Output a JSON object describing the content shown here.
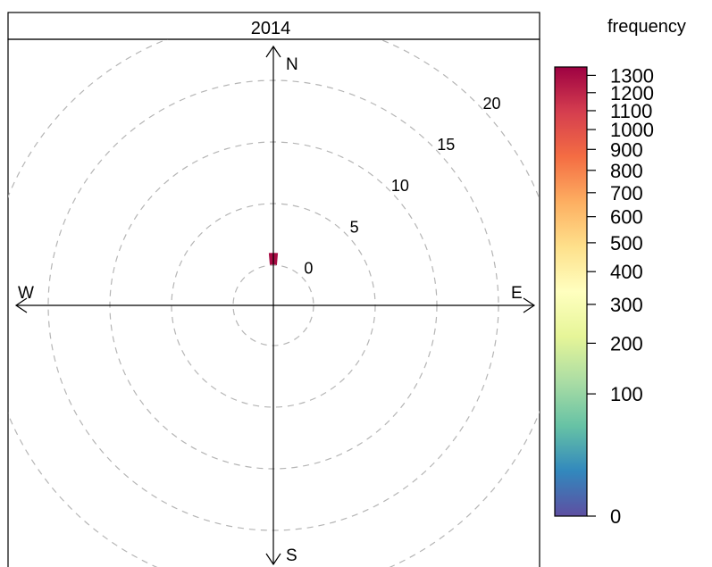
{
  "chart_data": {
    "type": "heatmap",
    "subtype": "polar-frequency-rose",
    "panel_title": "2014",
    "legend_title": "frequency",
    "compass": [
      "N",
      "E",
      "S",
      "W"
    ],
    "radial_ticks": [
      0,
      5,
      10,
      15,
      20
    ],
    "radial_range": [
      0,
      20
    ],
    "colorbar_ticks": [
      0,
      100,
      200,
      300,
      400,
      500,
      600,
      700,
      800,
      900,
      1000,
      1100,
      1200,
      1300
    ],
    "colorbar_range": [
      0,
      1350
    ],
    "colorbar_scale": "sqrt",
    "palette": [
      "#5e4fa2",
      "#3288bd",
      "#66c2a5",
      "#abdda4",
      "#e6f598",
      "#ffffbf",
      "#fee08b",
      "#fdae61",
      "#f46d43",
      "#d53e4f",
      "#9e0142"
    ],
    "grid": true,
    "legend_position": "right",
    "direction_step_deg": 10,
    "speed_step": 1,
    "cells_description": "frequency per (wind direction, wind speed) bin",
    "cells": [
      [
        0,
        1,
        1300
      ]
    ]
  }
}
